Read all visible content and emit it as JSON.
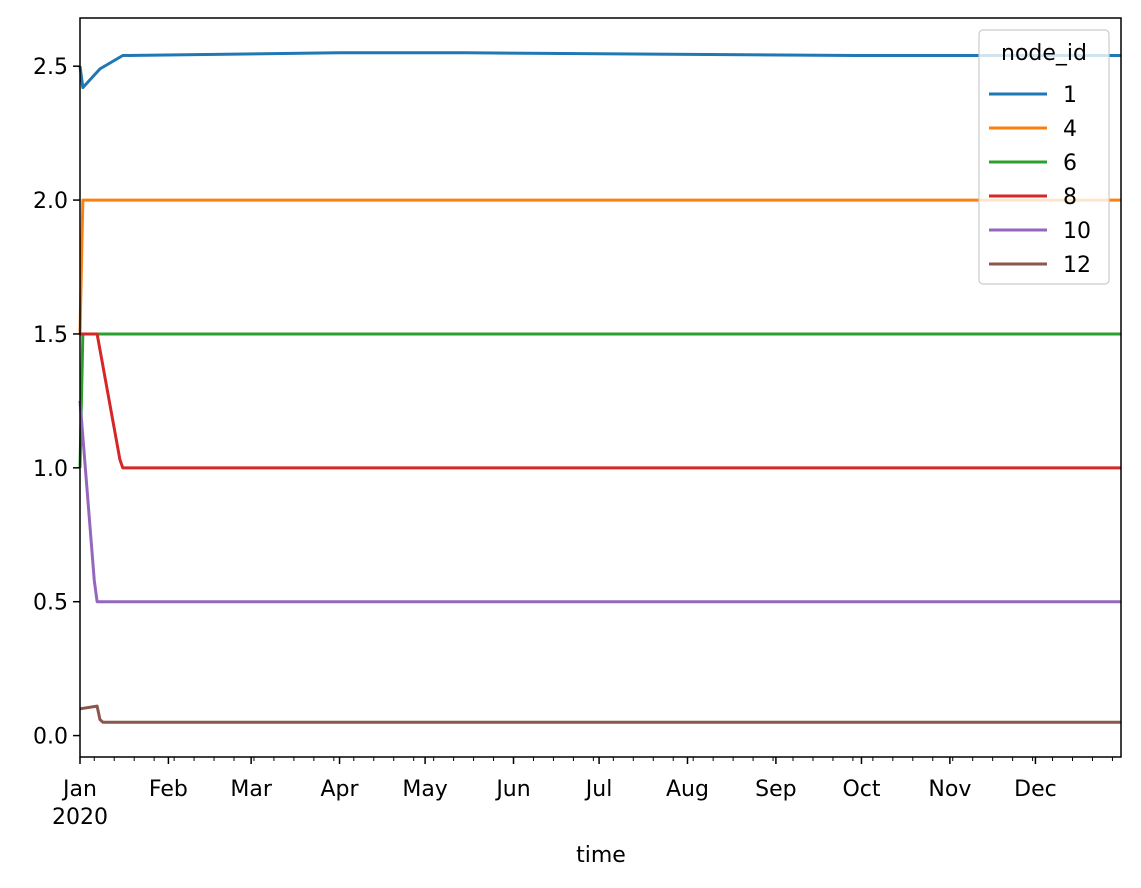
{
  "chart_data": {
    "type": "line",
    "xlabel": "time",
    "ylabel": "",
    "title": "",
    "x_range": [
      "2020-01-01",
      "2020-12-31"
    ],
    "ylim": [
      -0.08,
      2.68
    ],
    "y_ticks": [
      0.0,
      0.5,
      1.0,
      1.5,
      2.0,
      2.5
    ],
    "y_tick_labels": [
      "0.0",
      "0.5",
      "1.0",
      "1.5",
      "2.0",
      "2.5"
    ],
    "x_major_ticks": [
      {
        "date": "2020-01-01",
        "label": "Jan"
      },
      {
        "date": "2020-02-01",
        "label": "Feb"
      },
      {
        "date": "2020-03-01",
        "label": "Mar"
      },
      {
        "date": "2020-04-01",
        "label": "Apr"
      },
      {
        "date": "2020-05-01",
        "label": "May"
      },
      {
        "date": "2020-06-01",
        "label": "Jun"
      },
      {
        "date": "2020-07-01",
        "label": "Jul"
      },
      {
        "date": "2020-08-01",
        "label": "Aug"
      },
      {
        "date": "2020-09-01",
        "label": "Sep"
      },
      {
        "date": "2020-10-01",
        "label": "Oct"
      },
      {
        "date": "2020-11-01",
        "label": "Nov"
      },
      {
        "date": "2020-12-01",
        "label": "Dec"
      }
    ],
    "x_year_label": "2020",
    "grid": false,
    "legend": {
      "title": "node_id",
      "placement": "top-right"
    },
    "series": [
      {
        "name": "1",
        "color": "#1f77b4",
        "points": [
          [
            "2020-01-01",
            2.5
          ],
          [
            "2020-01-02",
            2.42
          ],
          [
            "2020-01-08",
            2.49
          ],
          [
            "2020-01-16",
            2.54
          ],
          [
            "2020-04-01",
            2.55
          ],
          [
            "2020-05-15",
            2.55
          ],
          [
            "2020-09-29",
            2.54
          ],
          [
            "2020-12-31",
            2.54
          ]
        ]
      },
      {
        "name": "4",
        "color": "#ff7f0e",
        "points": [
          [
            "2020-01-01",
            1.5
          ],
          [
            "2020-01-02",
            2.0
          ],
          [
            "2020-01-16",
            2.0
          ],
          [
            "2020-12-31",
            2.0
          ]
        ]
      },
      {
        "name": "6",
        "color": "#2ca02c",
        "points": [
          [
            "2020-01-01",
            1.0
          ],
          [
            "2020-01-02",
            1.5
          ],
          [
            "2020-01-16",
            1.5
          ],
          [
            "2020-12-31",
            1.5
          ]
        ]
      },
      {
        "name": "8",
        "color": "#d62728",
        "points": [
          [
            "2020-01-01",
            1.5
          ],
          [
            "2020-01-07",
            1.5
          ],
          [
            "2020-01-15",
            1.03
          ],
          [
            "2020-01-16",
            1.0
          ],
          [
            "2020-12-31",
            1.0
          ]
        ]
      },
      {
        "name": "10",
        "color": "#9467bd",
        "points": [
          [
            "2020-01-01",
            1.25
          ],
          [
            "2020-01-06",
            0.58
          ],
          [
            "2020-01-07",
            0.5
          ],
          [
            "2020-01-16",
            0.5
          ],
          [
            "2020-12-31",
            0.5
          ]
        ]
      },
      {
        "name": "12",
        "color": "#8c564b",
        "points": [
          [
            "2020-01-01",
            0.1
          ],
          [
            "2020-01-07",
            0.11
          ],
          [
            "2020-01-08",
            0.06
          ],
          [
            "2020-01-09",
            0.05
          ],
          [
            "2020-01-16",
            0.05
          ],
          [
            "2020-12-31",
            0.05
          ]
        ]
      }
    ]
  }
}
